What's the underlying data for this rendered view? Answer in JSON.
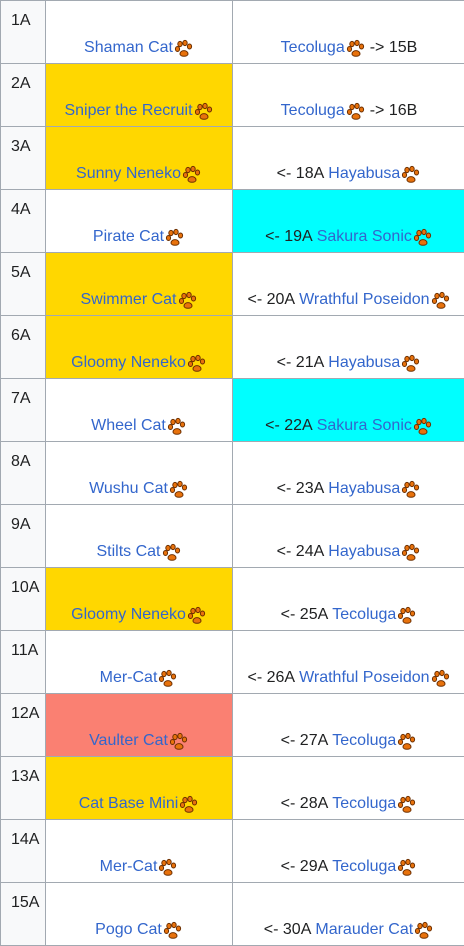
{
  "colors": {
    "link": "#3366cc",
    "yellow": "#ffd700",
    "cyan": "#00ffff",
    "salmon": "#fa8072",
    "paw": "#e8720c"
  },
  "icon": "cat-paw-icon",
  "rows": [
    {
      "num": "1A",
      "left": {
        "name": "Shaman Cat",
        "bg": "#ffffff"
      },
      "right": {
        "prefix": "",
        "name": "Tecoluga",
        "suffix": "-> 15B",
        "bg": "#ffffff"
      }
    },
    {
      "num": "2A",
      "left": {
        "name": "Sniper the Recruit",
        "bg": "#ffd700"
      },
      "right": {
        "prefix": "",
        "name": "Tecoluga",
        "suffix": "-> 16B",
        "bg": "#ffffff"
      }
    },
    {
      "num": "3A",
      "left": {
        "name": "Sunny Neneko",
        "bg": "#ffd700"
      },
      "right": {
        "prefix": "<- 18A",
        "name": "Hayabusa",
        "suffix": "",
        "bg": "#ffffff"
      }
    },
    {
      "num": "4A",
      "left": {
        "name": "Pirate Cat",
        "bg": "#ffffff"
      },
      "right": {
        "prefix": "<- 19A",
        "name": "Sakura Sonic",
        "suffix": "",
        "bg": "#00ffff"
      }
    },
    {
      "num": "5A",
      "left": {
        "name": "Swimmer Cat",
        "bg": "#ffd700"
      },
      "right": {
        "prefix": "<- 20A",
        "name": "Wrathful Poseidon",
        "suffix": "",
        "bg": "#ffffff"
      }
    },
    {
      "num": "6A",
      "left": {
        "name": "Gloomy Neneko",
        "bg": "#ffd700"
      },
      "right": {
        "prefix": "<- 21A",
        "name": "Hayabusa",
        "suffix": "",
        "bg": "#ffffff"
      }
    },
    {
      "num": "7A",
      "left": {
        "name": "Wheel Cat",
        "bg": "#ffffff"
      },
      "right": {
        "prefix": "<- 22A",
        "name": "Sakura Sonic",
        "suffix": "",
        "bg": "#00ffff"
      }
    },
    {
      "num": "8A",
      "left": {
        "name": "Wushu Cat",
        "bg": "#ffffff"
      },
      "right": {
        "prefix": "<- 23A",
        "name": "Hayabusa",
        "suffix": "",
        "bg": "#ffffff"
      }
    },
    {
      "num": "9A",
      "left": {
        "name": "Stilts Cat",
        "bg": "#ffffff"
      },
      "right": {
        "prefix": "<- 24A",
        "name": "Hayabusa",
        "suffix": "",
        "bg": "#ffffff"
      }
    },
    {
      "num": "10A",
      "left": {
        "name": "Gloomy Neneko",
        "bg": "#ffd700"
      },
      "right": {
        "prefix": "<- 25A",
        "name": "Tecoluga",
        "suffix": "",
        "bg": "#ffffff"
      }
    },
    {
      "num": "11A",
      "left": {
        "name": "Mer-Cat",
        "bg": "#ffffff"
      },
      "right": {
        "prefix": "<- 26A",
        "name": "Wrathful Poseidon",
        "suffix": "",
        "bg": "#ffffff"
      }
    },
    {
      "num": "12A",
      "left": {
        "name": "Vaulter Cat",
        "bg": "#fa8072"
      },
      "right": {
        "prefix": "<- 27A",
        "name": "Tecoluga",
        "suffix": "",
        "bg": "#ffffff"
      }
    },
    {
      "num": "13A",
      "left": {
        "name": "Cat Base Mini",
        "bg": "#ffd700"
      },
      "right": {
        "prefix": "<- 28A",
        "name": "Tecoluga",
        "suffix": "",
        "bg": "#ffffff"
      }
    },
    {
      "num": "14A",
      "left": {
        "name": "Mer-Cat",
        "bg": "#ffffff"
      },
      "right": {
        "prefix": "<- 29A",
        "name": "Tecoluga",
        "suffix": "",
        "bg": "#ffffff"
      }
    },
    {
      "num": "15A",
      "left": {
        "name": "Pogo Cat",
        "bg": "#ffffff"
      },
      "right": {
        "prefix": "<- 30A",
        "name": "Marauder Cat",
        "suffix": "",
        "bg": "#ffffff"
      }
    }
  ]
}
